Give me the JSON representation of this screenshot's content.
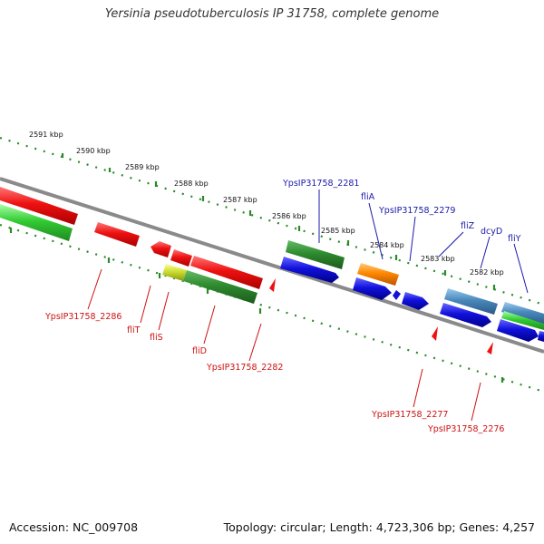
{
  "title": "Yersinia pseudotuberculosis IP 31758, complete genome",
  "footer": {
    "accession": "Accession: NC_009708",
    "topology": "Topology: circular; Length: 4,723,306 bp; Genes: 4,257"
  },
  "colors": {
    "backbone": "#8a8a8a",
    "ticks": "#2a8a2a",
    "red_gene": "#ee1111",
    "green_gene": "#2e8b2e",
    "bright_green_gene": "#33cc33",
    "blue_gene": "#1111dd",
    "orange_gene": "#ff8800",
    "steel_gene": "#4a88bb",
    "label_blue": "#1a1aaa",
    "label_red": "#cc1111"
  },
  "scale_labels": [
    "2591 kbp",
    "2590 kbp",
    "2589 kbp",
    "2588 kbp",
    "2587 kbp",
    "2586 kbp",
    "2585 kbp",
    "2584 kbp",
    "2583 kbp",
    "2582 kbp"
  ],
  "upper_gene_labels": [
    "YpsIP31758_2281",
    "fliA",
    "YpsIP31758_2279",
    "fliZ",
    "dcyD",
    "fliY"
  ],
  "lower_gene_labels": [
    "YpsIP31758_2286",
    "fliT",
    "fliS",
    "fliD",
    "YpsIP31758_2282",
    "YpsIP31758_2277",
    "YpsIP31758_2276"
  ]
}
